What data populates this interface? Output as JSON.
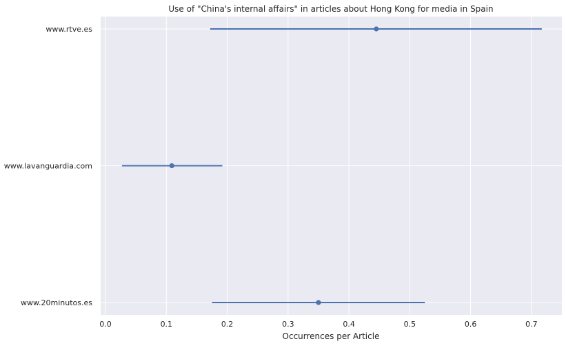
{
  "chart_data": {
    "type": "scatter",
    "title": "Use of \"China's internal affairs\" in articles about Hong Kong for media in Spain",
    "xlabel": "Occurrences per Article",
    "ylabel": "",
    "xlim": [
      -0.008,
      0.75
    ],
    "xticks": [
      0.0,
      0.1,
      0.2,
      0.3,
      0.4,
      0.5,
      0.6,
      0.7
    ],
    "xtick_labels": [
      "0.0",
      "0.1",
      "0.2",
      "0.3",
      "0.4",
      "0.5",
      "0.6",
      "0.7"
    ],
    "categories": [
      "www.rtve.es",
      "www.lavanguardia.com",
      "www.20minutos.es"
    ],
    "values": [
      0.445,
      0.109,
      0.35
    ],
    "ci_low": [
      0.172,
      0.027,
      0.175
    ],
    "ci_high": [
      0.717,
      0.192,
      0.525
    ],
    "grid": true,
    "legend": "none",
    "colors": {
      "background": "#eaeaf2",
      "grid": "#ffffff",
      "series": "#4c72b0"
    }
  }
}
